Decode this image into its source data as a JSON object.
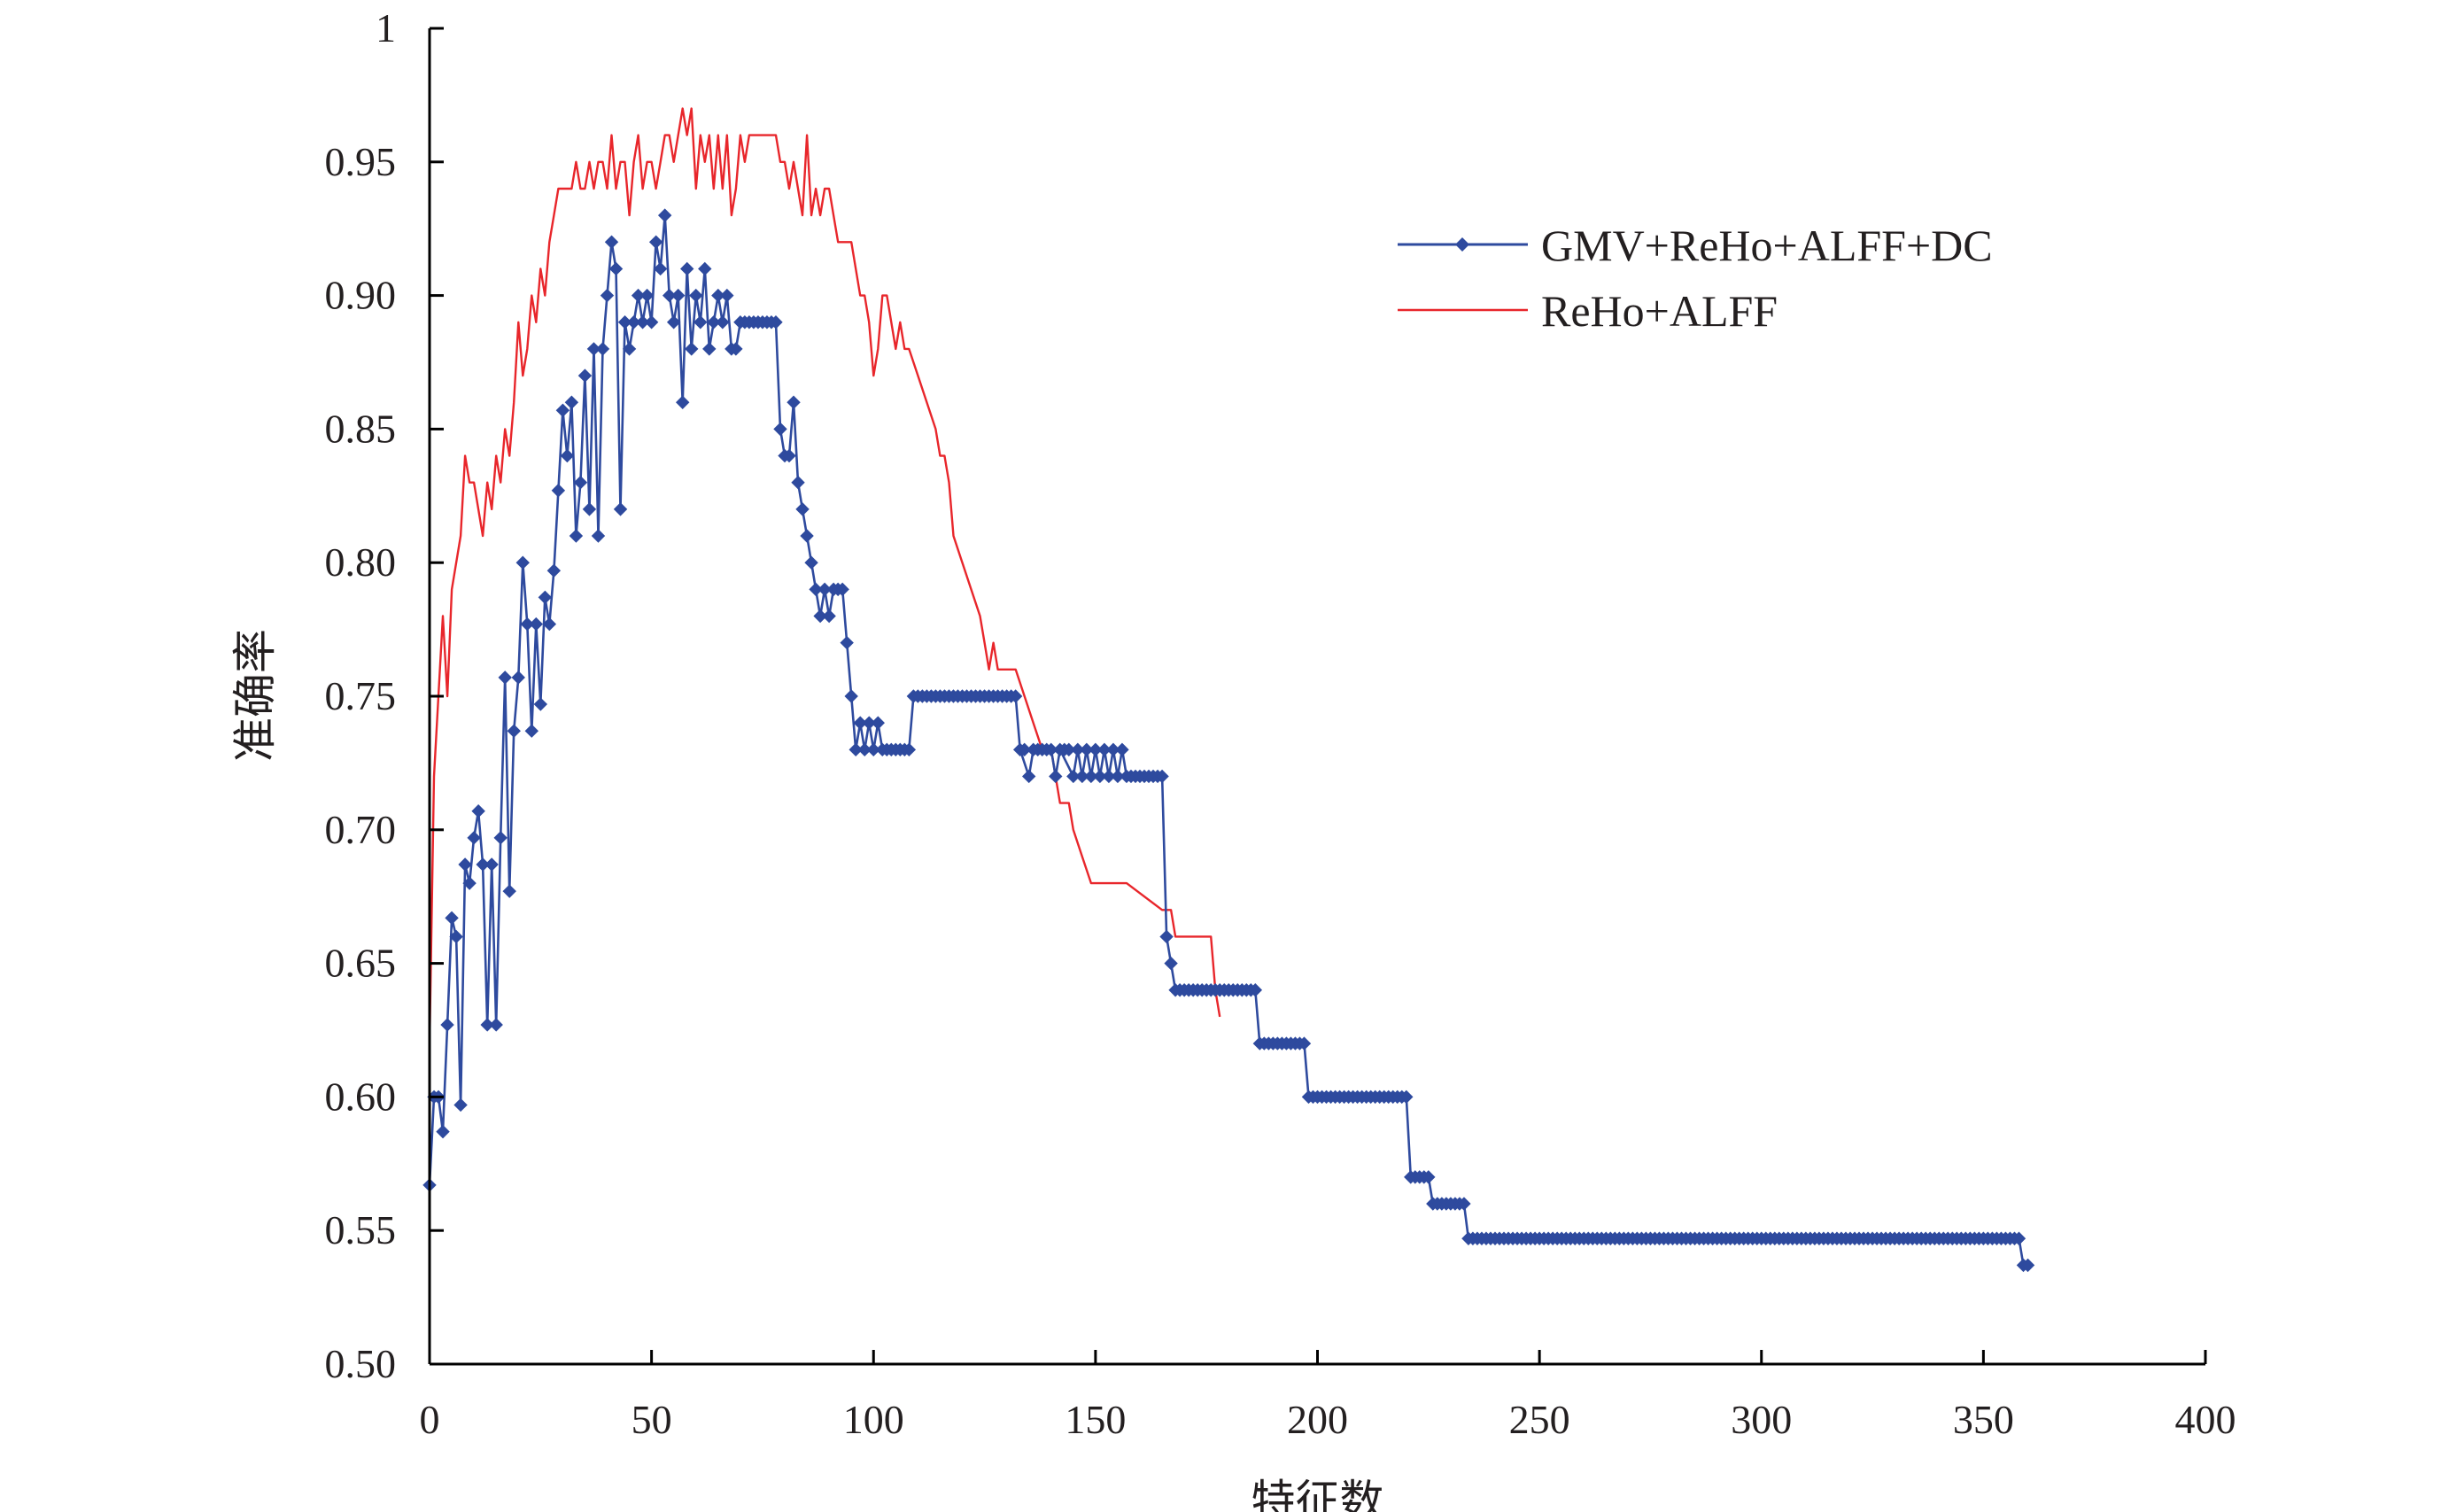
{
  "chart_data": {
    "type": "line",
    "xlabel": "特征数",
    "ylabel": "准确率",
    "xlim": [
      0,
      400
    ],
    "ylim": [
      0.5,
      1.0
    ],
    "x_ticks": [
      "0",
      "50",
      "100",
      "150",
      "200",
      "250",
      "300",
      "350",
      "400"
    ],
    "y_ticks": [
      "0.50",
      "0.55",
      "0.60",
      "0.65",
      "0.70",
      "0.75",
      "0.80",
      "0.85",
      "0.90",
      "0.95",
      "1"
    ],
    "grid": false,
    "legend_position": "top-right",
    "series": [
      {
        "name": "GMV+ReHo+ALFF+DC",
        "color": "#2e4a9e",
        "marker": "diamond",
        "points": [
          [
            0,
            0.567
          ],
          [
            1,
            0.6
          ],
          [
            2,
            0.6
          ],
          [
            3,
            0.587
          ],
          [
            4,
            0.627
          ],
          [
            5,
            0.667
          ],
          [
            6,
            0.66
          ],
          [
            7,
            0.597
          ],
          [
            8,
            0.687
          ],
          [
            9,
            0.68
          ],
          [
            10,
            0.697
          ],
          [
            11,
            0.707
          ],
          [
            12,
            0.687
          ],
          [
            13,
            0.627
          ],
          [
            14,
            0.687
          ],
          [
            15,
            0.627
          ],
          [
            16,
            0.697
          ],
          [
            17,
            0.757
          ],
          [
            18,
            0.677
          ],
          [
            19,
            0.737
          ],
          [
            20,
            0.757
          ],
          [
            21,
            0.8
          ],
          [
            22,
            0.777
          ],
          [
            23,
            0.737
          ],
          [
            24,
            0.777
          ],
          [
            25,
            0.747
          ],
          [
            26,
            0.787
          ],
          [
            27,
            0.777
          ],
          [
            28,
            0.797
          ],
          [
            29,
            0.827
          ],
          [
            30,
            0.857
          ],
          [
            31,
            0.84
          ],
          [
            32,
            0.86
          ],
          [
            33,
            0.81
          ],
          [
            34,
            0.83
          ],
          [
            35,
            0.87
          ],
          [
            36,
            0.82
          ],
          [
            37,
            0.88
          ],
          [
            38,
            0.81
          ],
          [
            39,
            0.88
          ],
          [
            40,
            0.9
          ],
          [
            41,
            0.92
          ],
          [
            42,
            0.91
          ],
          [
            43,
            0.82
          ],
          [
            44,
            0.89
          ],
          [
            45,
            0.88
          ],
          [
            46,
            0.89
          ],
          [
            47,
            0.9
          ],
          [
            48,
            0.89
          ],
          [
            49,
            0.9
          ],
          [
            50,
            0.89
          ],
          [
            51,
            0.92
          ],
          [
            52,
            0.91
          ],
          [
            53,
            0.93
          ],
          [
            54,
            0.9
          ],
          [
            55,
            0.89
          ],
          [
            56,
            0.9
          ],
          [
            57,
            0.86
          ],
          [
            58,
            0.91
          ],
          [
            59,
            0.88
          ],
          [
            60,
            0.9
          ],
          [
            61,
            0.89
          ],
          [
            62,
            0.91
          ],
          [
            63,
            0.88
          ],
          [
            64,
            0.89
          ],
          [
            65,
            0.9
          ],
          [
            66,
            0.89
          ],
          [
            67,
            0.9
          ],
          [
            68,
            0.88
          ],
          [
            69,
            0.88
          ],
          [
            70,
            0.89
          ],
          [
            75,
            0.89
          ],
          [
            78,
            0.89
          ],
          [
            79,
            0.85
          ],
          [
            80,
            0.84
          ],
          [
            81,
            0.84
          ],
          [
            82,
            0.86
          ],
          [
            83,
            0.83
          ],
          [
            84,
            0.82
          ],
          [
            85,
            0.81
          ],
          [
            86,
            0.8
          ],
          [
            87,
            0.79
          ],
          [
            88,
            0.78
          ],
          [
            89,
            0.79
          ],
          [
            90,
            0.78
          ],
          [
            91,
            0.79
          ],
          [
            93,
            0.79
          ],
          [
            94,
            0.77
          ],
          [
            95,
            0.75
          ],
          [
            96,
            0.73
          ],
          [
            97,
            0.74
          ],
          [
            98,
            0.73
          ],
          [
            99,
            0.74
          ],
          [
            100,
            0.73
          ],
          [
            101,
            0.74
          ],
          [
            102,
            0.73
          ],
          [
            108,
            0.73
          ],
          [
            109,
            0.75
          ],
          [
            132,
            0.75
          ],
          [
            133,
            0.73
          ],
          [
            135,
            0.72
          ],
          [
            136,
            0.73
          ],
          [
            140,
            0.73
          ],
          [
            141,
            0.72
          ],
          [
            142,
            0.73
          ],
          [
            145,
            0.72
          ],
          [
            146,
            0.73
          ],
          [
            147,
            0.72
          ],
          [
            148,
            0.73
          ],
          [
            149,
            0.72
          ],
          [
            150,
            0.73
          ],
          [
            151,
            0.72
          ],
          [
            152,
            0.73
          ],
          [
            153,
            0.72
          ],
          [
            154,
            0.73
          ],
          [
            155,
            0.72
          ],
          [
            156,
            0.73
          ],
          [
            157,
            0.72
          ],
          [
            165,
            0.72
          ],
          [
            166,
            0.66
          ],
          [
            167,
            0.65
          ],
          [
            168,
            0.64
          ],
          [
            186,
            0.64
          ],
          [
            187,
            0.62
          ],
          [
            197,
            0.62
          ],
          [
            198,
            0.6
          ],
          [
            220,
            0.6
          ],
          [
            221,
            0.57
          ],
          [
            225,
            0.57
          ],
          [
            226,
            0.56
          ],
          [
            233,
            0.56
          ],
          [
            234,
            0.547
          ],
          [
            358,
            0.547
          ],
          [
            359,
            0.537
          ],
          [
            360,
            0.537
          ]
        ]
      },
      {
        "name": "ReHo+ALFF",
        "color": "#e8262b",
        "marker": "none",
        "points": [
          [
            0,
            0.62
          ],
          [
            1,
            0.72
          ],
          [
            2,
            0.75
          ],
          [
            3,
            0.78
          ],
          [
            4,
            0.75
          ],
          [
            5,
            0.79
          ],
          [
            6,
            0.8
          ],
          [
            7,
            0.81
          ],
          [
            8,
            0.84
          ],
          [
            9,
            0.83
          ],
          [
            10,
            0.83
          ],
          [
            11,
            0.82
          ],
          [
            12,
            0.81
          ],
          [
            13,
            0.83
          ],
          [
            14,
            0.82
          ],
          [
            15,
            0.84
          ],
          [
            16,
            0.83
          ],
          [
            17,
            0.85
          ],
          [
            18,
            0.84
          ],
          [
            19,
            0.86
          ],
          [
            20,
            0.89
          ],
          [
            21,
            0.87
          ],
          [
            22,
            0.88
          ],
          [
            23,
            0.9
          ],
          [
            24,
            0.89
          ],
          [
            25,
            0.91
          ],
          [
            26,
            0.9
          ],
          [
            27,
            0.92
          ],
          [
            28,
            0.93
          ],
          [
            29,
            0.94
          ],
          [
            30,
            0.94
          ],
          [
            32,
            0.94
          ],
          [
            33,
            0.95
          ],
          [
            34,
            0.94
          ],
          [
            35,
            0.94
          ],
          [
            36,
            0.95
          ],
          [
            37,
            0.94
          ],
          [
            38,
            0.95
          ],
          [
            39,
            0.95
          ],
          [
            40,
            0.94
          ],
          [
            41,
            0.96
          ],
          [
            42,
            0.94
          ],
          [
            43,
            0.95
          ],
          [
            44,
            0.95
          ],
          [
            45,
            0.93
          ],
          [
            46,
            0.95
          ],
          [
            47,
            0.96
          ],
          [
            48,
            0.94
          ],
          [
            49,
            0.95
          ],
          [
            50,
            0.95
          ],
          [
            51,
            0.94
          ],
          [
            52,
            0.95
          ],
          [
            53,
            0.96
          ],
          [
            54,
            0.96
          ],
          [
            55,
            0.95
          ],
          [
            56,
            0.96
          ],
          [
            57,
            0.97
          ],
          [
            58,
            0.96
          ],
          [
            59,
            0.97
          ],
          [
            60,
            0.94
          ],
          [
            61,
            0.96
          ],
          [
            62,
            0.95
          ],
          [
            63,
            0.96
          ],
          [
            64,
            0.94
          ],
          [
            65,
            0.96
          ],
          [
            66,
            0.94
          ],
          [
            67,
            0.96
          ],
          [
            68,
            0.93
          ],
          [
            69,
            0.94
          ],
          [
            70,
            0.96
          ],
          [
            71,
            0.95
          ],
          [
            72,
            0.96
          ],
          [
            75,
            0.96
          ],
          [
            76,
            0.96
          ],
          [
            78,
            0.96
          ],
          [
            79,
            0.95
          ],
          [
            80,
            0.95
          ],
          [
            81,
            0.94
          ],
          [
            82,
            0.95
          ],
          [
            83,
            0.94
          ],
          [
            84,
            0.93
          ],
          [
            85,
            0.96
          ],
          [
            86,
            0.93
          ],
          [
            87,
            0.94
          ],
          [
            88,
            0.93
          ],
          [
            89,
            0.94
          ],
          [
            90,
            0.94
          ],
          [
            91,
            0.93
          ],
          [
            92,
            0.92
          ],
          [
            93,
            0.92
          ],
          [
            95,
            0.92
          ],
          [
            96,
            0.91
          ],
          [
            97,
            0.9
          ],
          [
            98,
            0.9
          ],
          [
            99,
            0.89
          ],
          [
            100,
            0.87
          ],
          [
            101,
            0.88
          ],
          [
            102,
            0.9
          ],
          [
            103,
            0.9
          ],
          [
            104,
            0.89
          ],
          [
            105,
            0.88
          ],
          [
            106,
            0.89
          ],
          [
            107,
            0.88
          ],
          [
            108,
            0.88
          ],
          [
            110,
            0.87
          ],
          [
            112,
            0.86
          ],
          [
            114,
            0.85
          ],
          [
            115,
            0.84
          ],
          [
            116,
            0.84
          ],
          [
            117,
            0.83
          ],
          [
            118,
            0.81
          ],
          [
            120,
            0.8
          ],
          [
            122,
            0.79
          ],
          [
            124,
            0.78
          ],
          [
            125,
            0.77
          ],
          [
            126,
            0.76
          ],
          [
            127,
            0.77
          ],
          [
            128,
            0.76
          ],
          [
            132,
            0.76
          ],
          [
            134,
            0.75
          ],
          [
            136,
            0.74
          ],
          [
            138,
            0.73
          ],
          [
            140,
            0.73
          ],
          [
            141,
            0.72
          ],
          [
            142,
            0.71
          ],
          [
            144,
            0.71
          ],
          [
            145,
            0.7
          ],
          [
            147,
            0.69
          ],
          [
            149,
            0.68
          ],
          [
            152,
            0.68
          ],
          [
            157,
            0.68
          ],
          [
            165,
            0.67
          ],
          [
            166,
            0.67
          ],
          [
            167,
            0.67
          ],
          [
            168,
            0.66
          ],
          [
            170,
            0.66
          ],
          [
            176,
            0.66
          ],
          [
            177,
            0.64
          ],
          [
            178,
            0.63
          ]
        ]
      }
    ]
  }
}
